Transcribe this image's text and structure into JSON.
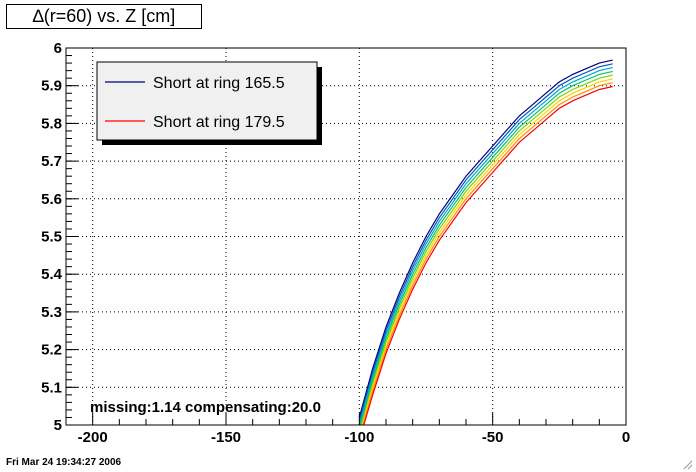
{
  "timestamp": "Fri Mar 24 19:34:27 2006",
  "colors": {
    "background": "#ffffff",
    "axis": "#000000",
    "grid": "#000000",
    "series_gradient": [
      "#00008b",
      "#0057b8",
      "#00a6c8",
      "#00c27a",
      "#7fd400",
      "#ffd000",
      "#ff8c00",
      "#ff0000"
    ]
  },
  "chart_data": {
    "type": "line",
    "title": "∆(r=60) vs. Z [cm]",
    "xlabel": "",
    "ylabel": "",
    "xlim": [
      -210,
      0
    ],
    "ylim": [
      5.0,
      6.0
    ],
    "x_ticks": [
      -200,
      -150,
      -100,
      -50,
      0
    ],
    "y_ticks": [
      5.0,
      5.1,
      5.2,
      5.3,
      5.4,
      5.5,
      5.6,
      5.7,
      5.8,
      5.9,
      6.0
    ],
    "x_tick_labels": [
      "-200",
      "-150",
      "-100",
      "-50",
      "0"
    ],
    "y_tick_labels": [
      "5",
      "5.1",
      "5.2",
      "5.3",
      "5.4",
      "5.5",
      "5.6",
      "5.7",
      "5.8",
      "5.9",
      "6"
    ],
    "grid": true,
    "legend_position": "top-left",
    "legend": [
      {
        "label": "Short at ring 165.5",
        "color": "#00008b"
      },
      {
        "label": "Short at ring 179.5",
        "color": "#ff0000"
      }
    ],
    "annotation": "missing:1.14 compensating:20.0",
    "x": [
      -100,
      -95,
      -90,
      -85,
      -80,
      -75,
      -70,
      -65,
      -60,
      -55,
      -50,
      -45,
      -40,
      -35,
      -30,
      -25,
      -20,
      -15,
      -10,
      -5
    ],
    "series": [
      {
        "name": "Short at ring 165.5",
        "color": "#00008b",
        "values": [
          5.02,
          5.15,
          5.26,
          5.35,
          5.43,
          5.5,
          5.56,
          5.61,
          5.66,
          5.7,
          5.74,
          5.78,
          5.82,
          5.85,
          5.88,
          5.91,
          5.93,
          5.945,
          5.96,
          5.968
        ]
      },
      {
        "color": "#0057b8",
        "values": [
          5.01,
          5.14,
          5.25,
          5.34,
          5.42,
          5.49,
          5.55,
          5.6,
          5.65,
          5.69,
          5.73,
          5.77,
          5.81,
          5.84,
          5.87,
          5.9,
          5.92,
          5.935,
          5.95,
          5.958
        ]
      },
      {
        "color": "#00a6c8",
        "values": [
          5.0,
          5.13,
          5.24,
          5.33,
          5.41,
          5.48,
          5.54,
          5.59,
          5.64,
          5.68,
          5.72,
          5.76,
          5.8,
          5.83,
          5.86,
          5.89,
          5.91,
          5.925,
          5.94,
          5.948
        ]
      },
      {
        "color": "#00c27a",
        "values": [
          4.99,
          5.12,
          5.23,
          5.32,
          5.4,
          5.47,
          5.53,
          5.58,
          5.63,
          5.67,
          5.71,
          5.75,
          5.79,
          5.82,
          5.85,
          5.88,
          5.9,
          5.915,
          5.93,
          5.938
        ]
      },
      {
        "color": "#7fd400",
        "values": [
          4.98,
          5.11,
          5.22,
          5.31,
          5.39,
          5.46,
          5.52,
          5.57,
          5.62,
          5.66,
          5.7,
          5.74,
          5.78,
          5.81,
          5.84,
          5.87,
          5.89,
          5.905,
          5.92,
          5.928
        ]
      },
      {
        "color": "#ffd000",
        "values": [
          4.97,
          5.1,
          5.21,
          5.3,
          5.38,
          5.45,
          5.51,
          5.56,
          5.61,
          5.65,
          5.69,
          5.73,
          5.77,
          5.8,
          5.83,
          5.86,
          5.88,
          5.895,
          5.91,
          5.918
        ]
      },
      {
        "color": "#ff8c00",
        "values": [
          4.965,
          5.09,
          5.2,
          5.29,
          5.37,
          5.44,
          5.5,
          5.55,
          5.6,
          5.64,
          5.68,
          5.72,
          5.76,
          5.79,
          5.82,
          5.85,
          5.87,
          5.885,
          5.9,
          5.908
        ]
      },
      {
        "name": "Short at ring 179.5",
        "color": "#ff0000",
        "values": [
          4.96,
          5.08,
          5.19,
          5.28,
          5.36,
          5.43,
          5.49,
          5.54,
          5.59,
          5.63,
          5.67,
          5.71,
          5.75,
          5.78,
          5.81,
          5.84,
          5.86,
          5.875,
          5.89,
          5.898
        ]
      }
    ]
  }
}
